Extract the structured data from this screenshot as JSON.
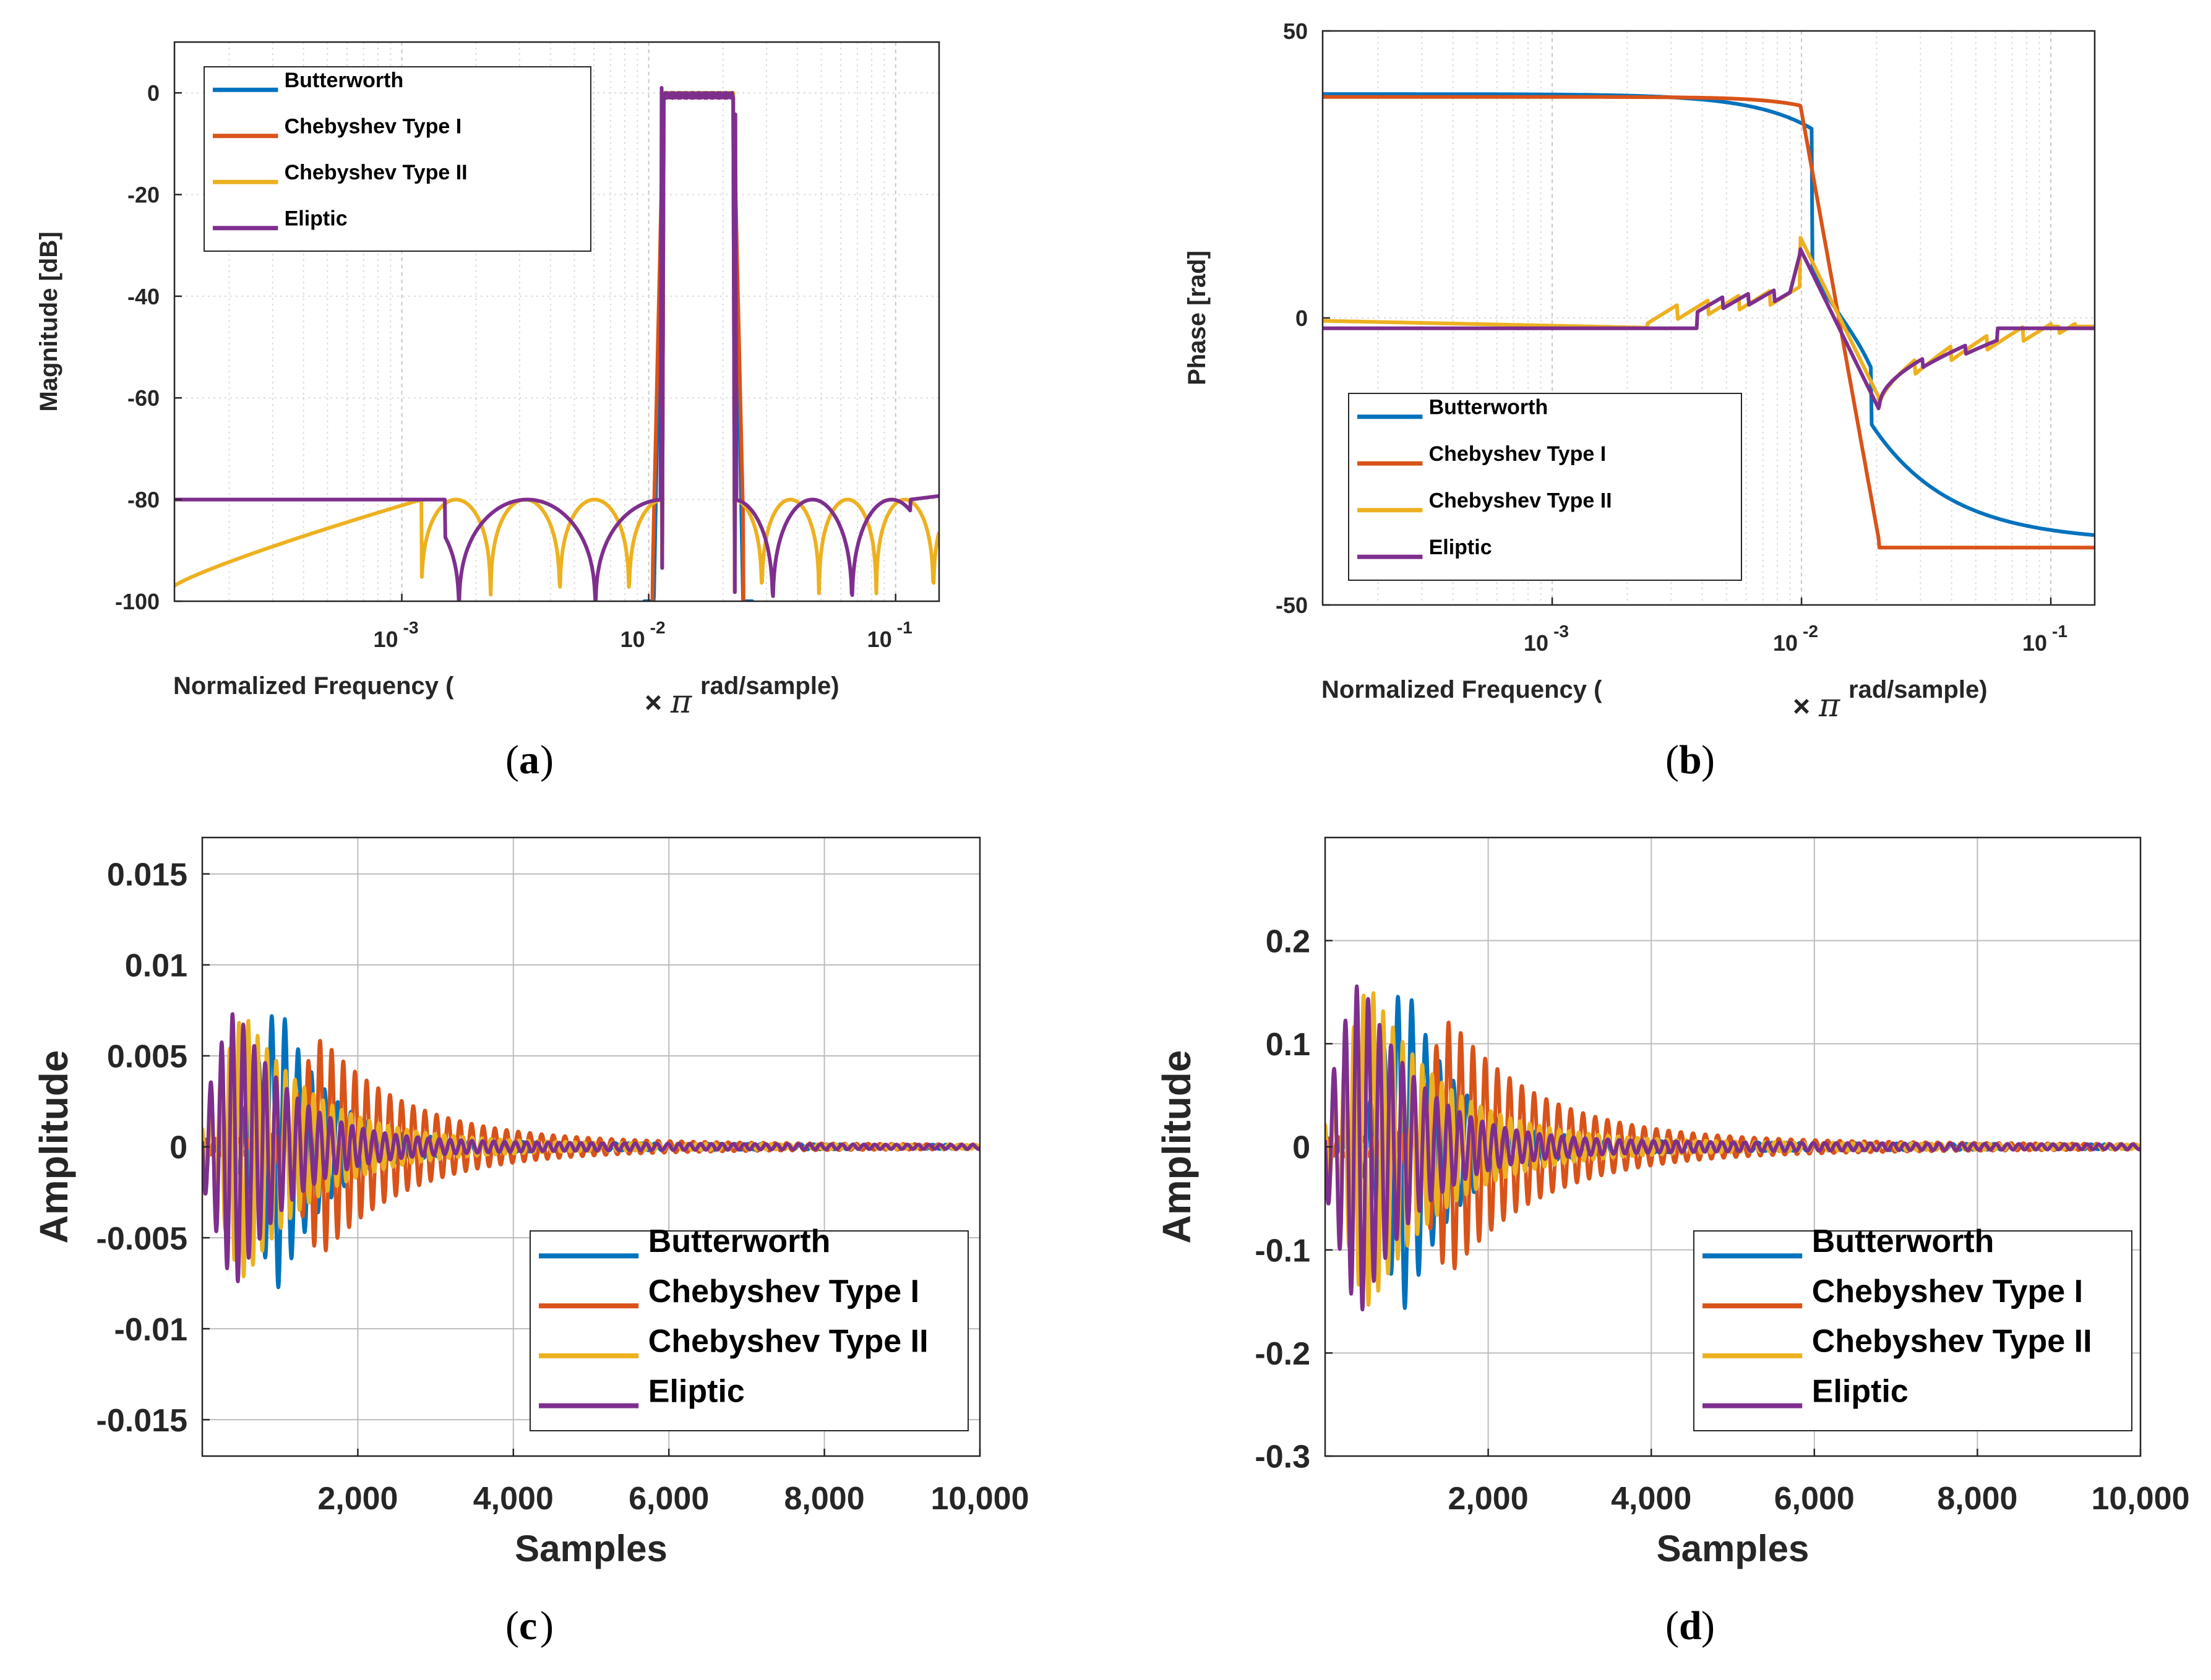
{
  "colors": {
    "butterworth": "#0072BD",
    "chebyshev1": "#D95319",
    "chebyshev2": "#EDB120",
    "eliptic": "#7E2F8E",
    "grid": "#dcdcdc",
    "grid_major": "#c8c8c8",
    "axis": "#262626"
  },
  "chart_data": [
    {
      "id": "a",
      "type": "line",
      "caption_letter": "a",
      "xlabel_left": "Normalized Frequency (",
      "xlabel_times": "×",
      "xlabel_pi": "π",
      "xlabel_right": "rad/sample)",
      "ylabel": "Magnitude [dB]",
      "xscale": "log",
      "xlim": [
        0.00012,
        0.15
      ],
      "ylim": [
        -100,
        10
      ],
      "yticks": [
        {
          "value": 0,
          "label": "0"
        },
        {
          "value": -20,
          "label": "-20"
        },
        {
          "value": -40,
          "label": "-40"
        },
        {
          "value": -60,
          "label": "-60"
        },
        {
          "value": -80,
          "label": "-80"
        },
        {
          "value": -100,
          "label": "-100"
        }
      ],
      "xticks": [
        {
          "value": 0.001,
          "base": "10",
          "exp": "-3"
        },
        {
          "value": 0.01,
          "base": "10",
          "exp": "-2"
        },
        {
          "value": 0.1,
          "base": "10",
          "exp": "-1"
        }
      ],
      "grid": true,
      "legend_position": "top-left",
      "legend": [
        "Butterworth",
        "Chebyshev Type I",
        "Chebyshev Type II",
        "Eliptic"
      ],
      "passband": [
        0.0115,
        0.022
      ],
      "stopband_level_db": -80
    },
    {
      "id": "b",
      "type": "line",
      "caption_letter": "b",
      "xlabel_left": "Normalized Frequency (",
      "xlabel_times": "×",
      "xlabel_pi": "π",
      "xlabel_right": "rad/sample)",
      "ylabel": "Phase [rad]",
      "xscale": "log",
      "xlim": [
        0.00012,
        0.15
      ],
      "ylim": [
        -50,
        50
      ],
      "yticks": [
        {
          "value": 50,
          "label": "50"
        },
        {
          "value": 0,
          "label": "0"
        },
        {
          "value": -50,
          "label": "-50"
        }
      ],
      "xticks": [
        {
          "value": 0.001,
          "base": "10",
          "exp": "-3"
        },
        {
          "value": 0.01,
          "base": "10",
          "exp": "-2"
        },
        {
          "value": 0.1,
          "base": "10",
          "exp": "-1"
        }
      ],
      "grid": true,
      "legend_position": "bottom-left",
      "legend": [
        "Butterworth",
        "Chebyshev Type I",
        "Chebyshev Type II",
        "Eliptic"
      ],
      "plateau_rad": 38
    },
    {
      "id": "c",
      "type": "line",
      "caption_letter": "c",
      "xlabel": "Samples",
      "ylabel": "Amplitude",
      "xlim": [
        0,
        10000
      ],
      "ylim": [
        -0.017,
        0.017
      ],
      "yticks": [
        {
          "value": 0.015,
          "label": "0.015"
        },
        {
          "value": 0.01,
          "label": "0.01"
        },
        {
          "value": 0.005,
          "label": "0.005"
        },
        {
          "value": 0,
          "label": "0"
        },
        {
          "value": -0.005,
          "label": "-0.005"
        },
        {
          "value": -0.01,
          "label": "-0.01"
        },
        {
          "value": -0.015,
          "label": "-0.015"
        }
      ],
      "xticks": [
        {
          "value": 2000,
          "label": "2,000"
        },
        {
          "value": 4000,
          "label": "4,000"
        },
        {
          "value": 6000,
          "label": "6,000"
        },
        {
          "value": 8000,
          "label": "8,000"
        },
        {
          "value": 10000,
          "label": "10,000"
        }
      ],
      "grid": true,
      "legend_position": "bottom-right",
      "legend": [
        "Butterworth",
        "Chebyshev Type I",
        "Chebyshev Type II",
        "Eliptic"
      ],
      "series_peaks": [
        {
          "name": "Butterworth",
          "peak": 0.0078,
          "center": 1000
        },
        {
          "name": "Chebyshev Type I",
          "peak": 0.0058,
          "center": 1550
        },
        {
          "name": "Chebyshev Type II",
          "peak": 0.0072,
          "center": 560
        },
        {
          "name": "Eliptic",
          "peak": 0.0075,
          "center": 450
        }
      ]
    },
    {
      "id": "d",
      "type": "line",
      "caption_letter": "d",
      "xlabel": "Samples",
      "ylabel": "Amplitude",
      "xlim": [
        0,
        10000
      ],
      "ylim": [
        -0.3,
        0.3
      ],
      "yticks": [
        {
          "value": 0.2,
          "label": "0.2"
        },
        {
          "value": 0.1,
          "label": "0.1"
        },
        {
          "value": 0,
          "label": "0"
        },
        {
          "value": -0.1,
          "label": "-0.1"
        },
        {
          "value": -0.2,
          "label": "-0.2"
        },
        {
          "value": -0.3,
          "label": "-0.3"
        }
      ],
      "xticks": [
        {
          "value": 2000,
          "label": "2,000"
        },
        {
          "value": 4000,
          "label": "4,000"
        },
        {
          "value": 6000,
          "label": "6,000"
        },
        {
          "value": 8000,
          "label": "8,000"
        },
        {
          "value": 10000,
          "label": "10,000"
        }
      ],
      "grid": true,
      "legend_position": "bottom-right",
      "legend": [
        "Butterworth",
        "Chebyshev Type I",
        "Chebyshev Type II",
        "Eliptic"
      ],
      "series_peaks": [
        {
          "name": "Butterworth",
          "peak": 0.158,
          "center": 1000
        },
        {
          "name": "Chebyshev Type I",
          "peak": 0.12,
          "center": 1550
        },
        {
          "name": "Chebyshev Type II",
          "peak": 0.155,
          "center": 560
        },
        {
          "name": "Eliptic",
          "peak": 0.16,
          "center": 450
        }
      ]
    }
  ]
}
